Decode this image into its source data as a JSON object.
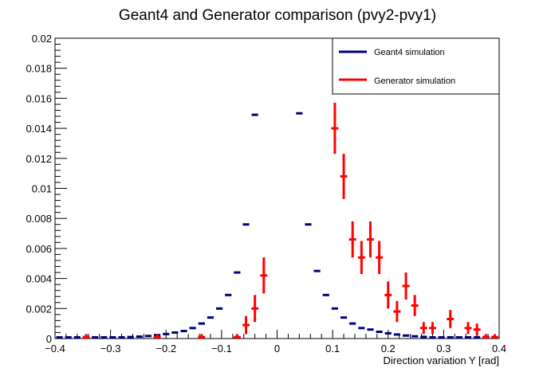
{
  "chart_data": {
    "type": "scatter",
    "title": "Geant4 and Generator comparison (pvy2-pvy1)",
    "xlabel": "Direction variation Y [rad]",
    "ylabel": "",
    "xlim": [
      -0.4,
      0.4
    ],
    "ylim": [
      0,
      0.02
    ],
    "x_ticks": [
      "−0.4",
      "−0.3",
      "−0.2",
      "−0.1",
      "0",
      "0.1",
      "0.2",
      "0.3",
      "0.4"
    ],
    "x_tick_values": [
      -0.4,
      -0.3,
      -0.2,
      -0.1,
      0,
      0.1,
      0.2,
      0.3,
      0.4
    ],
    "y_ticks": [
      "0",
      "0.002",
      "0.004",
      "0.006",
      "0.008",
      "0.01",
      "0.012",
      "0.014",
      "0.016",
      "0.018",
      "0.02"
    ],
    "y_tick_values": [
      0,
      0.002,
      0.004,
      0.006,
      0.008,
      0.01,
      0.012,
      0.014,
      0.016,
      0.018,
      0.02
    ],
    "grid": false,
    "legend_position": "top-right",
    "series": [
      {
        "name": "Geant4 simulation",
        "color": "#000080",
        "style": "horizontal-bin-markers",
        "bin_width": 0.016,
        "points": [
          {
            "x": -0.392,
            "y": 1e-05
          },
          {
            "x": -0.376,
            "y": 2e-05
          },
          {
            "x": -0.36,
            "y": 3e-05
          },
          {
            "x": -0.344,
            "y": 4e-05
          },
          {
            "x": -0.328,
            "y": 5e-05
          },
          {
            "x": -0.312,
            "y": 6e-05
          },
          {
            "x": -0.296,
            "y": 7e-05
          },
          {
            "x": -0.28,
            "y": 8e-05
          },
          {
            "x": -0.264,
            "y": 0.0001
          },
          {
            "x": -0.248,
            "y": 0.00013
          },
          {
            "x": -0.232,
            "y": 0.00017
          },
          {
            "x": -0.216,
            "y": 0.00023
          },
          {
            "x": -0.2,
            "y": 0.0003
          },
          {
            "x": -0.184,
            "y": 0.0004
          },
          {
            "x": -0.168,
            "y": 0.0005
          },
          {
            "x": -0.152,
            "y": 0.0007
          },
          {
            "x": -0.136,
            "y": 0.001
          },
          {
            "x": -0.12,
            "y": 0.0014
          },
          {
            "x": -0.104,
            "y": 0.002
          },
          {
            "x": -0.088,
            "y": 0.0029
          },
          {
            "x": -0.072,
            "y": 0.0044
          },
          {
            "x": -0.056,
            "y": 0.0076
          },
          {
            "x": -0.04,
            "y": 0.0149
          },
          {
            "x": 0.04,
            "y": 0.015
          },
          {
            "x": 0.056,
            "y": 0.0076
          },
          {
            "x": 0.072,
            "y": 0.0045
          },
          {
            "x": 0.088,
            "y": 0.0029
          },
          {
            "x": 0.104,
            "y": 0.002
          },
          {
            "x": 0.12,
            "y": 0.0014
          },
          {
            "x": 0.136,
            "y": 0.001
          },
          {
            "x": 0.152,
            "y": 0.0007
          },
          {
            "x": 0.168,
            "y": 0.0006
          },
          {
            "x": 0.184,
            "y": 0.00045
          },
          {
            "x": 0.2,
            "y": 0.00035
          },
          {
            "x": 0.216,
            "y": 0.00027
          },
          {
            "x": 0.232,
            "y": 0.0002
          },
          {
            "x": 0.248,
            "y": 0.00015
          },
          {
            "x": 0.264,
            "y": 0.00011
          },
          {
            "x": 0.28,
            "y": 8e-05
          },
          {
            "x": 0.296,
            "y": 7e-05
          },
          {
            "x": 0.312,
            "y": 5e-05
          },
          {
            "x": 0.328,
            "y": 4e-05
          },
          {
            "x": 0.344,
            "y": 3e-05
          },
          {
            "x": 0.36,
            "y": 2e-05
          },
          {
            "x": 0.376,
            "y": 1e-05
          },
          {
            "x": 0.392,
            "y": 1e-05
          }
        ]
      },
      {
        "name": "Generator simulation",
        "color": "#ff0000",
        "style": "error-cross",
        "bin_width": 0.0128,
        "points": [
          {
            "x": -0.344,
            "y": 0.0001,
            "err": 0.0002
          },
          {
            "x": -0.216,
            "y": 0.0001,
            "err": 0.0002
          },
          {
            "x": -0.136,
            "y": 0.0001,
            "err": 0.0002
          },
          {
            "x": -0.072,
            "y": 0.0001,
            "err": 0.0002
          },
          {
            "x": -0.056,
            "y": 0.0009,
            "err": 0.0006
          },
          {
            "x": -0.04,
            "y": 0.002,
            "err": 0.0009
          },
          {
            "x": -0.024,
            "y": 0.0042,
            "err": 0.0012
          },
          {
            "x": 0.104,
            "y": 0.014,
            "err": 0.0017
          },
          {
            "x": 0.12,
            "y": 0.0108,
            "err": 0.0015
          },
          {
            "x": 0.136,
            "y": 0.0066,
            "err": 0.0012
          },
          {
            "x": 0.152,
            "y": 0.0054,
            "err": 0.0011
          },
          {
            "x": 0.168,
            "y": 0.0066,
            "err": 0.0012
          },
          {
            "x": 0.184,
            "y": 0.0054,
            "err": 0.0011
          },
          {
            "x": 0.2,
            "y": 0.0029,
            "err": 0.0009
          },
          {
            "x": 0.216,
            "y": 0.0018,
            "err": 0.0007
          },
          {
            "x": 0.232,
            "y": 0.0035,
            "err": 0.0009
          },
          {
            "x": 0.248,
            "y": 0.0022,
            "err": 0.0007
          },
          {
            "x": 0.264,
            "y": 0.0007,
            "err": 0.0004
          },
          {
            "x": 0.28,
            "y": 0.0007,
            "err": 0.0004
          },
          {
            "x": 0.312,
            "y": 0.0013,
            "err": 0.0006
          },
          {
            "x": 0.344,
            "y": 0.0007,
            "err": 0.0004
          },
          {
            "x": 0.36,
            "y": 0.0006,
            "err": 0.0004
          },
          {
            "x": 0.376,
            "y": 0.0001,
            "err": 0.0002
          },
          {
            "x": 0.392,
            "y": 0.0001,
            "err": 0.0002
          }
        ]
      }
    ]
  }
}
